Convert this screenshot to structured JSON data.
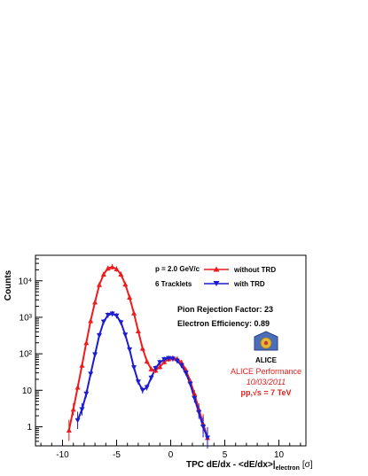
{
  "chart_data": {
    "type": "line",
    "title": "",
    "xlabel": "TPC dE/dx - <dE/dx>|",
    "xlabel_sub": "electron",
    "xlabel_unit": "[σ]",
    "ylabel": "Counts",
    "xlim": [
      -12.5,
      12.5
    ],
    "ylim": [
      0.3,
      50000
    ],
    "yscale": "log",
    "x_ticks": [
      -10,
      -5,
      0,
      5,
      10
    ],
    "x_tick_labels": [
      "-10",
      "-5",
      "0",
      "5",
      "10"
    ],
    "y_ticks": [
      1,
      10,
      100,
      1000,
      10000
    ],
    "y_tick_labels": [
      "1",
      "10",
      "10²",
      "10³",
      "10⁴"
    ],
    "grid": false,
    "legend_position": "top-right",
    "annotations": [
      "p = 2.0 GeV/c",
      "6 Tracklets",
      "Pion Rejection Factor: 23",
      "Electron Efficiency: 0.89"
    ],
    "performance_label": {
      "logo_text": "ALICE",
      "title": "ALICE Performance",
      "date": "10/03/2011",
      "system_prefix": "pp,",
      "system_suffix": "s = 7 TeV"
    },
    "series": [
      {
        "name": "without TRD",
        "color": "#ee1c1c",
        "marker": "triangle-up",
        "x": [
          -9.4,
          -9.0,
          -8.6,
          -8.2,
          -7.8,
          -7.4,
          -7.0,
          -6.6,
          -6.2,
          -5.8,
          -5.4,
          -5.0,
          -4.6,
          -4.2,
          -3.8,
          -3.4,
          -3.0,
          -2.6,
          -2.2,
          -1.8,
          -1.4,
          -1.0,
          -0.6,
          -0.2,
          0.2,
          0.6,
          1.0,
          1.4,
          1.8,
          2.2,
          2.6,
          3.0,
          3.4
        ],
        "y": [
          0.8,
          3,
          12,
          48,
          200,
          800,
          2600,
          7800,
          15000,
          22000,
          24000,
          21000,
          15000,
          8000,
          3500,
          1300,
          420,
          140,
          62,
          38,
          35,
          44,
          60,
          72,
          76,
          72,
          58,
          36,
          18,
          8,
          3,
          1.2,
          0.5
        ]
      },
      {
        "name": "with TRD",
        "color": "#1c1cd0",
        "marker": "triangle-down",
        "x": [
          -8.6,
          -8.2,
          -7.8,
          -7.4,
          -7.0,
          -6.6,
          -6.2,
          -5.8,
          -5.4,
          -5.0,
          -4.6,
          -4.2,
          -3.8,
          -3.4,
          -3.0,
          -2.6,
          -2.2,
          -1.8,
          -1.4,
          -1.0,
          -0.6,
          -0.2,
          0.2,
          0.6,
          1.0,
          1.4,
          1.8,
          2.2,
          2.6,
          3.0,
          3.4
        ],
        "y": [
          1.5,
          3,
          8,
          28,
          95,
          320,
          750,
          1150,
          1250,
          1100,
          720,
          330,
          130,
          42,
          17,
          10,
          12,
          22,
          40,
          58,
          70,
          75,
          73,
          64,
          48,
          30,
          15,
          6,
          2.5,
          1,
          0.5
        ]
      }
    ]
  }
}
